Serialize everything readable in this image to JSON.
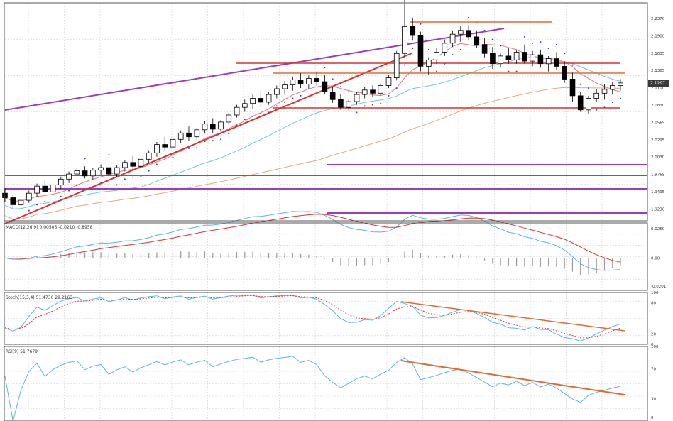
{
  "colors": {
    "candle_body_up": "#ffffff",
    "candle_body_down": "#000000",
    "candle_wick": "#000000",
    "ma_fast": "#e5737d",
    "ma_mid": "#6fc9d3",
    "ma_slow": "#e0aa7e",
    "psar": "#3a3fbf",
    "support_resistance": "#d93030",
    "channel_lines": "#9b3dc0",
    "macd_main": "#5bb6da",
    "macd_signal": "#d83232",
    "stoch_k": "#5bb6da",
    "stoch_d": "#d83232",
    "rsi_line": "#5bb6da",
    "trendline_orange": "#e06a32",
    "grid": "#cfcfcf",
    "current_price_box": "#3a3a3a"
  },
  "price_axis": {
    "ticks": [
      "2.2370",
      "2.1900",
      "2.1635",
      "2.1365",
      "2.1100",
      "2.0830",
      "2.0565",
      "2.0295",
      "2.0030",
      "1.9765",
      "1.9495",
      "1.9230"
    ],
    "current_price": "2.1297"
  },
  "macd_pane": {
    "title": "MACD(12,26,9) 0.00505 -0.0210 -0.8958",
    "ticks": [
      "0.0250",
      "0.00",
      "-0.0201"
    ]
  },
  "stoch_pane": {
    "title": "Stoch(15,3,4) 51.4736 29.2163",
    "ticks": [
      "100",
      "80",
      "20",
      "0"
    ]
  },
  "rsi_pane": {
    "title": "RSI(9) 51.7679",
    "ticks": [
      "100",
      "70",
      "30",
      "0"
    ]
  },
  "chart_data": [
    {
      "type": "candlestick",
      "title": "",
      "ylim": [
        1.915,
        2.255
      ],
      "candles": [
        [
          1.958,
          1.966,
          1.944,
          1.951
        ],
        [
          1.951,
          1.955,
          1.934,
          1.94
        ],
        [
          1.94,
          1.952,
          1.934,
          1.947
        ],
        [
          1.947,
          1.962,
          1.943,
          1.958
        ],
        [
          1.958,
          1.973,
          1.952,
          1.969
        ],
        [
          1.969,
          1.978,
          1.957,
          1.96
        ],
        [
          1.96,
          1.975,
          1.956,
          1.971
        ],
        [
          1.971,
          1.984,
          1.965,
          1.98
        ],
        [
          1.98,
          1.992,
          1.974,
          1.988
        ],
        [
          1.988,
          1.998,
          1.982,
          1.993
        ],
        [
          1.993,
          2.0,
          1.981,
          1.985
        ],
        [
          1.985,
          1.997,
          1.979,
          1.994
        ],
        [
          1.994,
          2.003,
          1.987,
          1.998
        ],
        [
          1.998,
          2.006,
          1.984,
          1.988
        ],
        [
          1.988,
          2.002,
          1.983,
          1.998
        ],
        [
          1.998,
          2.01,
          1.992,
          2.006
        ],
        [
          2.006,
          2.016,
          1.995,
          2.0
        ],
        [
          2.0,
          2.014,
          1.996,
          2.011
        ],
        [
          2.011,
          2.025,
          2.005,
          2.021
        ],
        [
          2.021,
          2.038,
          2.015,
          2.034
        ],
        [
          2.034,
          2.046,
          2.025,
          2.03
        ],
        [
          2.03,
          2.045,
          2.026,
          2.042
        ],
        [
          2.042,
          2.056,
          2.036,
          2.052
        ],
        [
          2.052,
          2.062,
          2.04,
          2.046
        ],
        [
          2.046,
          2.06,
          2.041,
          2.057
        ],
        [
          2.057,
          2.07,
          2.051,
          2.066
        ],
        [
          2.066,
          2.075,
          2.052,
          2.058
        ],
        [
          2.058,
          2.072,
          2.054,
          2.069
        ],
        [
          2.069,
          2.084,
          2.063,
          2.08
        ],
        [
          2.08,
          2.096,
          2.076,
          2.092
        ],
        [
          2.092,
          2.104,
          2.085,
          2.098
        ],
        [
          2.098,
          2.112,
          2.09,
          2.106
        ],
        [
          2.106,
          2.118,
          2.094,
          2.1
        ],
        [
          2.1,
          2.116,
          2.096,
          2.112
        ],
        [
          2.112,
          2.126,
          2.106,
          2.121
        ],
        [
          2.121,
          2.133,
          2.112,
          2.127
        ],
        [
          2.127,
          2.14,
          2.118,
          2.135
        ],
        [
          2.135,
          2.145,
          2.122,
          2.128
        ],
        [
          2.128,
          2.142,
          2.121,
          2.137
        ],
        [
          2.137,
          2.148,
          2.126,
          2.132
        ],
        [
          2.132,
          2.142,
          2.112,
          2.116
        ],
        [
          2.116,
          2.124,
          2.099,
          2.104
        ],
        [
          2.104,
          2.112,
          2.088,
          2.092
        ],
        [
          2.092,
          2.104,
          2.086,
          2.101
        ],
        [
          2.101,
          2.116,
          2.096,
          2.112
        ],
        [
          2.112,
          2.124,
          2.106,
          2.119
        ],
        [
          2.119,
          2.126,
          2.108,
          2.114
        ],
        [
          2.114,
          2.13,
          2.11,
          2.126
        ],
        [
          2.126,
          2.142,
          2.122,
          2.138
        ],
        [
          2.138,
          2.18,
          2.134,
          2.176
        ],
        [
          2.176,
          2.262,
          2.17,
          2.218
        ],
        [
          2.218,
          2.232,
          2.196,
          2.204
        ],
        [
          2.204,
          2.21,
          2.148,
          2.156
        ],
        [
          2.156,
          2.17,
          2.142,
          2.166
        ],
        [
          2.166,
          2.184,
          2.16,
          2.178
        ],
        [
          2.178,
          2.198,
          2.172,
          2.192
        ],
        [
          2.192,
          2.212,
          2.186,
          2.206
        ],
        [
          2.206,
          2.219,
          2.194,
          2.212
        ],
        [
          2.212,
          2.22,
          2.196,
          2.202
        ],
        [
          2.202,
          2.212,
          2.185,
          2.19
        ],
        [
          2.19,
          2.2,
          2.17,
          2.176
        ],
        [
          2.176,
          2.186,
          2.152,
          2.16
        ],
        [
          2.16,
          2.176,
          2.154,
          2.172
        ],
        [
          2.172,
          2.184,
          2.16,
          2.166
        ],
        [
          2.166,
          2.182,
          2.16,
          2.178
        ],
        [
          2.178,
          2.19,
          2.16,
          2.164
        ],
        [
          2.164,
          2.18,
          2.156,
          2.174
        ],
        [
          2.174,
          2.182,
          2.154,
          2.16
        ],
        [
          2.16,
          2.172,
          2.148,
          2.168
        ],
        [
          2.168,
          2.178,
          2.15,
          2.156
        ],
        [
          2.156,
          2.164,
          2.13,
          2.136
        ],
        [
          2.136,
          2.146,
          2.1,
          2.11
        ],
        [
          2.11,
          2.116,
          2.085,
          2.088
        ],
        [
          2.088,
          2.11,
          2.082,
          2.106
        ],
        [
          2.106,
          2.12,
          2.1,
          2.114
        ],
        [
          2.114,
          2.128,
          2.104,
          2.12
        ],
        [
          2.12,
          2.132,
          2.112,
          2.126
        ],
        [
          2.126,
          2.136,
          2.118,
          2.13
        ]
      ]
    },
    {
      "type": "line",
      "title": "MACD(12,26,9)",
      "ylim": [
        -0.024,
        0.026
      ]
    },
    {
      "type": "line",
      "title": "Stoch(15,3,4)",
      "ylim": [
        0,
        100
      ]
    },
    {
      "type": "line",
      "title": "RSI(9)",
      "ylim": [
        0,
        100
      ]
    }
  ]
}
